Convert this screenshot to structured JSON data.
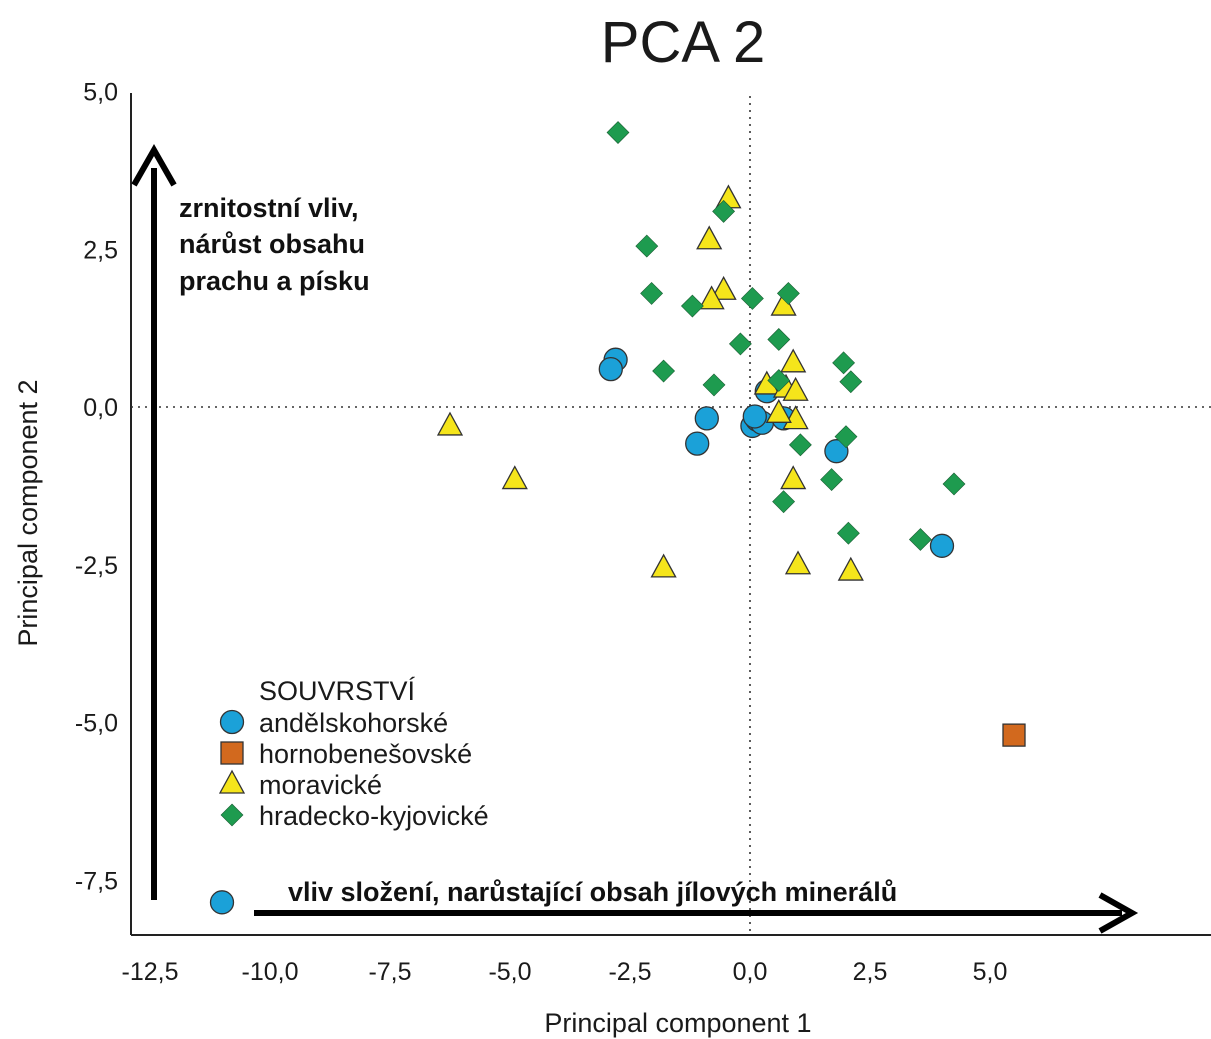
{
  "chart_data": {
    "type": "scatter",
    "title": "PCA 2",
    "xlabel": "Principal component 1",
    "ylabel": "Principal component 2",
    "xlim": [
      -12.5,
      6.5
    ],
    "ylim": [
      -8.2,
      5.0
    ],
    "x_ticks": [
      "-12,5",
      "-10,0",
      "-7,5",
      "-5,0",
      "-2,5",
      "0,0",
      "2,5",
      "5,0"
    ],
    "x_tick_values": [
      -12.5,
      -10.0,
      -7.5,
      -5.0,
      -2.5,
      0.0,
      2.5,
      5.0
    ],
    "y_ticks": [
      "5,0",
      "2,5",
      "0,0",
      "-2,5",
      "-5,0",
      "-7,5"
    ],
    "y_tick_values": [
      5.0,
      2.5,
      0.0,
      -2.5,
      -5.0,
      -7.5
    ],
    "grid": false,
    "reference_lines": {
      "x": 0.0,
      "y": 0.0,
      "style": "dotted"
    },
    "legend": {
      "title": "SOUVRSTVÍ",
      "placement": "lower-left"
    },
    "annotations": {
      "vertical_arrow_text": [
        "zrnitostní vliv,",
        "nárůst obsahu",
        "prachu a písku"
      ],
      "horizontal_arrow_text": "vliv složení, narůstající obsah jílových minerálů"
    },
    "series": [
      {
        "name": "andělskohorské",
        "marker": "circle",
        "color": "#1ba1d8",
        "points": [
          [
            -2.8,
            0.75
          ],
          [
            -2.9,
            0.6
          ],
          [
            -0.9,
            -0.18
          ],
          [
            -1.1,
            -0.58
          ],
          [
            0.05,
            -0.3
          ],
          [
            0.15,
            -0.2
          ],
          [
            0.25,
            -0.25
          ],
          [
            0.1,
            -0.15
          ],
          [
            0.35,
            0.25
          ],
          [
            0.7,
            -0.18
          ],
          [
            1.8,
            -0.7
          ],
          [
            4.0,
            -2.2
          ],
          [
            -11.0,
            -7.85
          ]
        ]
      },
      {
        "name": "hornobenešovské",
        "marker": "square",
        "color": "#d2691e",
        "points": [
          [
            5.5,
            -5.2
          ]
        ]
      },
      {
        "name": "moravické",
        "marker": "triangle",
        "color": "#f5e51b",
        "points": [
          [
            -0.45,
            3.3
          ],
          [
            -0.85,
            2.65
          ],
          [
            -0.55,
            1.85
          ],
          [
            -0.8,
            1.7
          ],
          [
            0.7,
            1.6
          ],
          [
            0.9,
            0.7
          ],
          [
            0.35,
            0.35
          ],
          [
            0.75,
            0.3
          ],
          [
            0.95,
            0.25
          ],
          [
            0.95,
            -0.2
          ],
          [
            0.6,
            -0.1
          ],
          [
            0.9,
            -1.15
          ],
          [
            1.0,
            -2.5
          ],
          [
            2.1,
            -2.6
          ],
          [
            -1.8,
            -2.55
          ],
          [
            -4.9,
            -1.15
          ],
          [
            -6.25,
            -0.3
          ]
        ]
      },
      {
        "name": "hradecko-kyjovické",
        "marker": "diamond",
        "color": "#1e9b4f",
        "points": [
          [
            -2.75,
            4.35
          ],
          [
            -0.55,
            3.1
          ],
          [
            -2.15,
            2.55
          ],
          [
            -2.05,
            1.8
          ],
          [
            -1.2,
            1.6
          ],
          [
            0.05,
            1.72
          ],
          [
            0.8,
            1.8
          ],
          [
            -0.2,
            1.0
          ],
          [
            0.6,
            1.07
          ],
          [
            -1.8,
            0.57
          ],
          [
            -0.75,
            0.35
          ],
          [
            0.6,
            0.42
          ],
          [
            1.95,
            0.7
          ],
          [
            2.1,
            0.4
          ],
          [
            1.05,
            -0.6
          ],
          [
            2.0,
            -0.47
          ],
          [
            0.7,
            -1.5
          ],
          [
            1.7,
            -1.15
          ],
          [
            2.05,
            -2.0
          ],
          [
            3.55,
            -2.1
          ],
          [
            4.25,
            -1.22
          ]
        ]
      }
    ]
  }
}
